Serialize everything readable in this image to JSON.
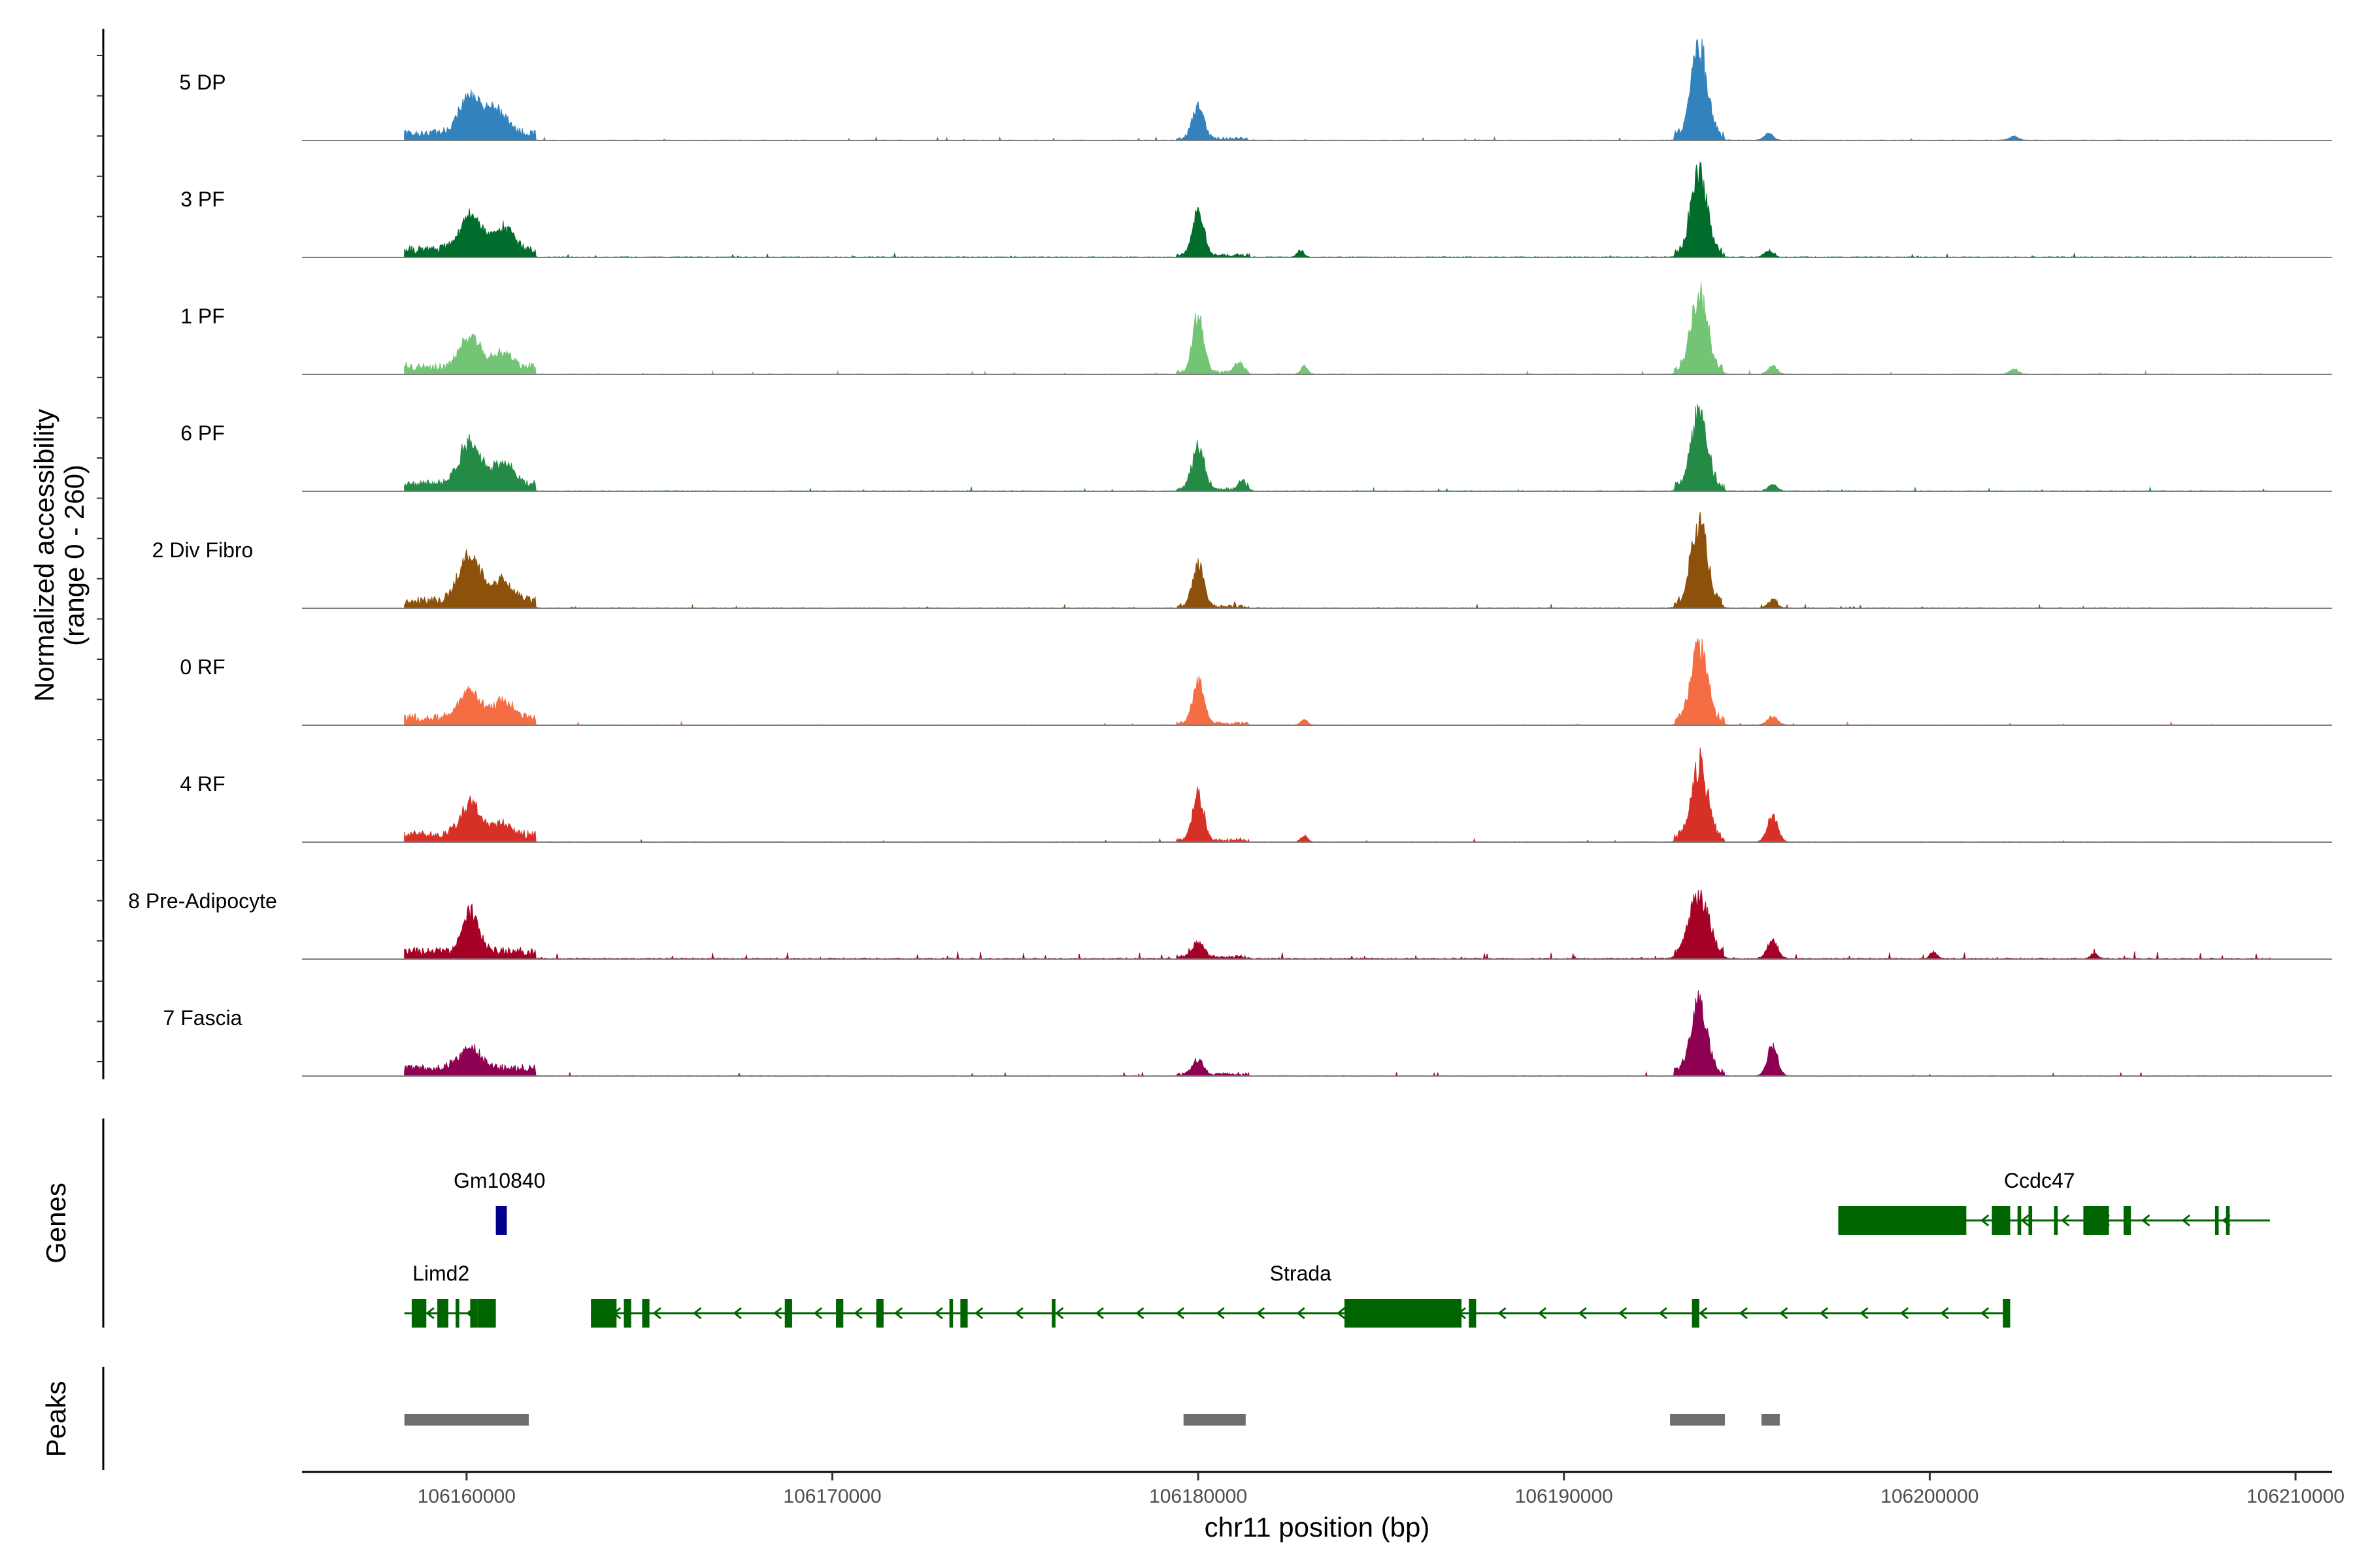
{
  "chart_data": {
    "type": "area",
    "title": "",
    "xlabel": "chr11 position (bp)",
    "ylabel": [
      "Normalized accessibility",
      "(range 0 - 260)"
    ],
    "yrange": [
      0,
      260
    ],
    "xlim": [
      106155500,
      106211000
    ],
    "xticks": [
      106160000,
      106170000,
      106180000,
      106190000,
      106200000,
      106210000
    ],
    "xtick_labels": [
      "106160000",
      "106170000",
      "106180000",
      "106190000",
      "106200000",
      "106210000"
    ],
    "track_range": [
      106158300,
      106209300
    ],
    "tracks": [
      {
        "name": "5 DP",
        "color": "#3182BD",
        "region": 0.55,
        "peaks": [
          [
            106156000,
            0,
            0
          ],
          [
            106160100,
            110,
            280
          ],
          [
            106160800,
            70,
            300
          ],
          [
            106180000,
            90,
            160
          ],
          [
            106193700,
            260,
            220
          ],
          [
            106195600,
            20,
            120
          ],
          [
            106202300,
            12,
            120
          ]
        ]
      },
      {
        "name": "3 PF",
        "color": "#006D2C",
        "region": 0.75,
        "peaks": [
          [
            106160100,
            100,
            300
          ],
          [
            106161000,
            70,
            260
          ],
          [
            106180000,
            140,
            150
          ],
          [
            106182800,
            20,
            90
          ],
          [
            106193700,
            240,
            220
          ],
          [
            106195600,
            20,
            120
          ]
        ]
      },
      {
        "name": "1 PF",
        "color": "#74C476",
        "region": 0.6,
        "peaks": [
          [
            106160100,
            95,
            260
          ],
          [
            106161000,
            45,
            240
          ],
          [
            106180000,
            170,
            150
          ],
          [
            106181100,
            30,
            120
          ],
          [
            106182900,
            22,
            90
          ],
          [
            106193700,
            230,
            220
          ],
          [
            106195700,
            25,
            120
          ],
          [
            106202300,
            15,
            120
          ]
        ]
      },
      {
        "name": "6 PF",
        "color": "#238B45",
        "region": 0.7,
        "peaks": [
          [
            106160100,
            125,
            280
          ],
          [
            106161000,
            70,
            260
          ],
          [
            106180000,
            130,
            160
          ],
          [
            106181200,
            25,
            120
          ],
          [
            106193700,
            220,
            220
          ],
          [
            106195700,
            20,
            120
          ]
        ]
      },
      {
        "name": "2 Div Fibro",
        "color": "#8C510A",
        "region": 0.7,
        "peaks": [
          [
            106160100,
            130,
            300
          ],
          [
            106161000,
            60,
            260
          ],
          [
            106180000,
            125,
            150
          ],
          [
            106193700,
            240,
            220
          ],
          [
            106195700,
            25,
            120
          ]
        ]
      },
      {
        "name": "0 RF",
        "color": "#F46D43",
        "region": 0.55,
        "peaks": [
          [
            106160100,
            80,
            280
          ],
          [
            106161000,
            50,
            260
          ],
          [
            106180000,
            125,
            150
          ],
          [
            106182900,
            15,
            90
          ],
          [
            106193700,
            220,
            220
          ],
          [
            106195700,
            25,
            140
          ]
        ]
      },
      {
        "name": "4 RF",
        "color": "#D73027",
        "region": 0.6,
        "peaks": [
          [
            106160100,
            90,
            280
          ],
          [
            106161000,
            35,
            240
          ],
          [
            106180000,
            140,
            150
          ],
          [
            106182900,
            18,
            90
          ],
          [
            106193700,
            220,
            220
          ],
          [
            106195700,
            80,
            140
          ]
        ]
      },
      {
        "name": "8 Pre-Adipocyte",
        "color": "#A50026",
        "region": 1.2,
        "peaks": [
          [
            106160100,
            115,
            220
          ],
          [
            106180000,
            45,
            150
          ],
          [
            106193700,
            180,
            260
          ],
          [
            106195700,
            55,
            140
          ],
          [
            106200100,
            18,
            100
          ],
          [
            106204500,
            15,
            100
          ]
        ]
      },
      {
        "name": "7 Fascia",
        "color": "#8E0152",
        "region": 0.6,
        "peaks": [
          [
            106160100,
            60,
            300
          ],
          [
            106180000,
            40,
            150
          ],
          [
            106193700,
            200,
            220
          ],
          [
            106195700,
            85,
            140
          ]
        ]
      }
    ],
    "genes_track_label": "Genes",
    "peaks_track_label": "Peaks",
    "genes": [
      {
        "name": "Gm10840",
        "color": "#00008B",
        "row": 0,
        "start": 106160800,
        "end": 106161100,
        "exons": [
          [
            106160800,
            106161100
          ]
        ],
        "label_x": 106160900
      },
      {
        "name": "Ccdc47",
        "color": "#006400",
        "row": 0,
        "start": 106197500,
        "end": 106209300,
        "exons": [
          [
            106197500,
            106201000
          ],
          [
            106201700,
            106202200
          ],
          [
            106202400,
            106202500
          ],
          [
            106202700,
            106202800
          ],
          [
            106203400,
            106203500
          ],
          [
            106204200,
            106204900
          ],
          [
            106205300,
            106205500
          ],
          [
            106207800,
            106207900
          ],
          [
            106208100,
            106208200
          ]
        ],
        "label_x": 106203000
      },
      {
        "name": "Limd2",
        "color": "#006400",
        "row": 1,
        "start": 106158300,
        "end": 106160800,
        "exons": [
          [
            106158500,
            106158900
          ],
          [
            106159200,
            106159500
          ],
          [
            106159700,
            106159800
          ],
          [
            106160100,
            106160300
          ],
          [
            106160400,
            106160500
          ],
          [
            106160300,
            106160800
          ]
        ],
        "label_x": 106159300
      },
      {
        "name": "Strada",
        "color": "#006400",
        "row": 1,
        "start": 106163400,
        "end": 106202200,
        "exons": [
          [
            106163400,
            106164100
          ],
          [
            106164300,
            106164500
          ],
          [
            106164800,
            106165000
          ],
          [
            106168700,
            106168900
          ],
          [
            106170100,
            106170300
          ],
          [
            106171200,
            106171400
          ],
          [
            106173200,
            106173300
          ],
          [
            106173500,
            106173700
          ],
          [
            106176000,
            106176100
          ],
          [
            106184000,
            106187200
          ],
          [
            106187400,
            106187600
          ],
          [
            106193500,
            106193700
          ],
          [
            106202000,
            106202200
          ]
        ],
        "label_x": 106182800
      }
    ],
    "peaks": [
      [
        106158300,
        106161700
      ],
      [
        106179600,
        106181300
      ],
      [
        106192900,
        106194400
      ],
      [
        106195400,
        106195900
      ]
    ]
  }
}
